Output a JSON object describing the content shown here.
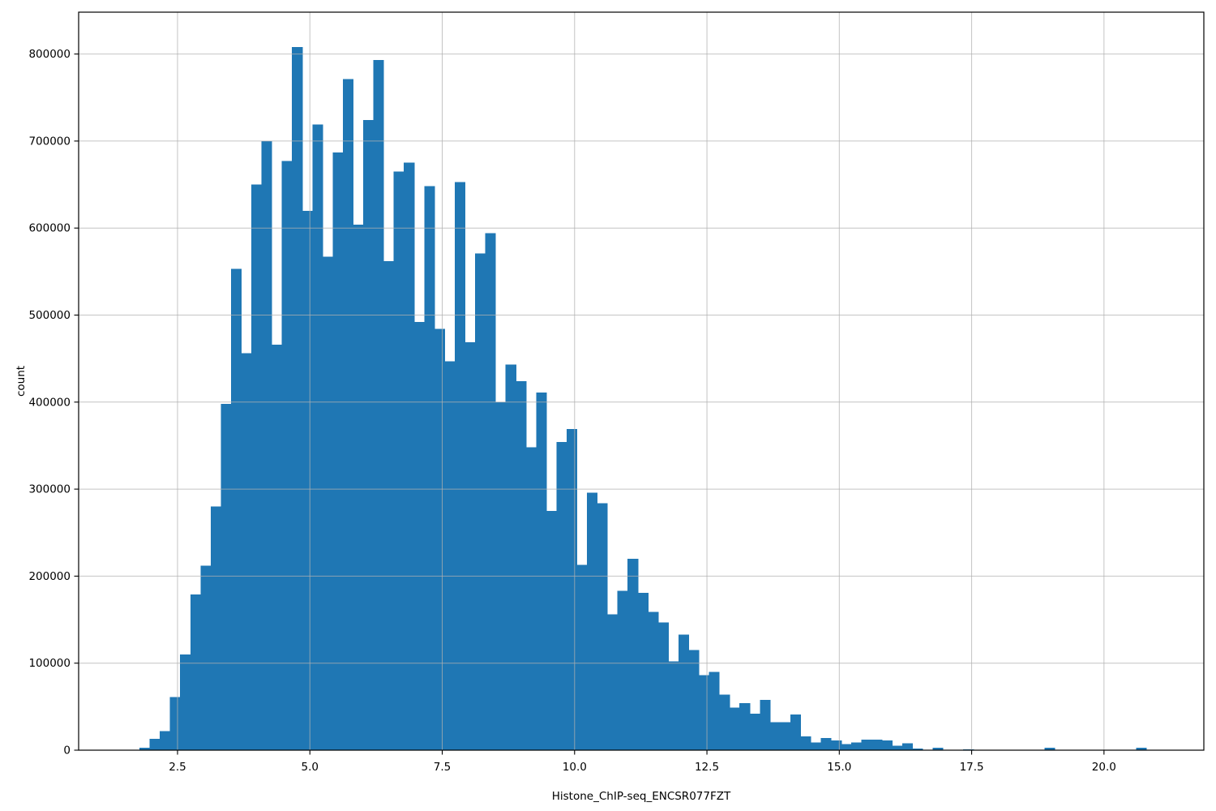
{
  "chart_data": {
    "type": "histogram",
    "title": "",
    "xlabel": "Histone_ChIP-seq_ENCSR077FZT",
    "ylabel": "count",
    "legend": null,
    "grid": true,
    "grid_color": "#b0b0b0",
    "grid_above_bars": true,
    "bar_color": "#1f77b4",
    "spine_color": "#000000",
    "background_color": "#ffffff",
    "xlim": [
      0.632,
      21.886
    ],
    "ylim": [
      0,
      848100
    ],
    "x_ticks": [
      {
        "value": 2.5,
        "label": "2.5"
      },
      {
        "value": 5.0,
        "label": "5.0"
      },
      {
        "value": 7.5,
        "label": "7.5"
      },
      {
        "value": 10.0,
        "label": "10.0"
      },
      {
        "value": 12.5,
        "label": "12.5"
      },
      {
        "value": 15.0,
        "label": "15.0"
      },
      {
        "value": 17.5,
        "label": "17.5"
      },
      {
        "value": 20.0,
        "label": "20.0"
      }
    ],
    "y_ticks": [
      {
        "value": 0,
        "label": "0"
      },
      {
        "value": 100000,
        "label": "100000"
      },
      {
        "value": 200000,
        "label": "200000"
      },
      {
        "value": 300000,
        "label": "300000"
      },
      {
        "value": 400000,
        "label": "400000"
      },
      {
        "value": 500000,
        "label": "500000"
      },
      {
        "value": 600000,
        "label": "600000"
      },
      {
        "value": 700000,
        "label": "700000"
      },
      {
        "value": 800000,
        "label": "800000"
      }
    ],
    "bins": {
      "start": 1.781,
      "width": 0.1921,
      "counts": [
        3000,
        13000,
        22000,
        61000,
        110000,
        179000,
        212000,
        280000,
        398000,
        553000,
        456000,
        650000,
        700000,
        466000,
        677000,
        808000,
        620000,
        719000,
        567000,
        687000,
        771000,
        604000,
        724000,
        793000,
        562000,
        665000,
        675000,
        492000,
        648000,
        484000,
        447000,
        653000,
        469000,
        571000,
        594000,
        400000,
        443000,
        424000,
        348000,
        411000,
        275000,
        354000,
        369000,
        213000,
        296000,
        284000,
        156000,
        183000,
        220000,
        181000,
        159000,
        147000,
        102000,
        133000,
        115000,
        86000,
        90000,
        64000,
        49000,
        54000,
        42000,
        58000,
        32000,
        32000,
        41000,
        16000,
        9000,
        14000,
        11000,
        7000,
        9000,
        12000,
        12000,
        11000,
        5000,
        8000,
        2000,
        0,
        3000,
        0,
        0,
        1000,
        0,
        0,
        0,
        0,
        0,
        0,
        0,
        3000,
        0,
        0,
        0,
        0,
        0,
        0,
        0,
        0,
        3000,
        0
      ]
    }
  }
}
